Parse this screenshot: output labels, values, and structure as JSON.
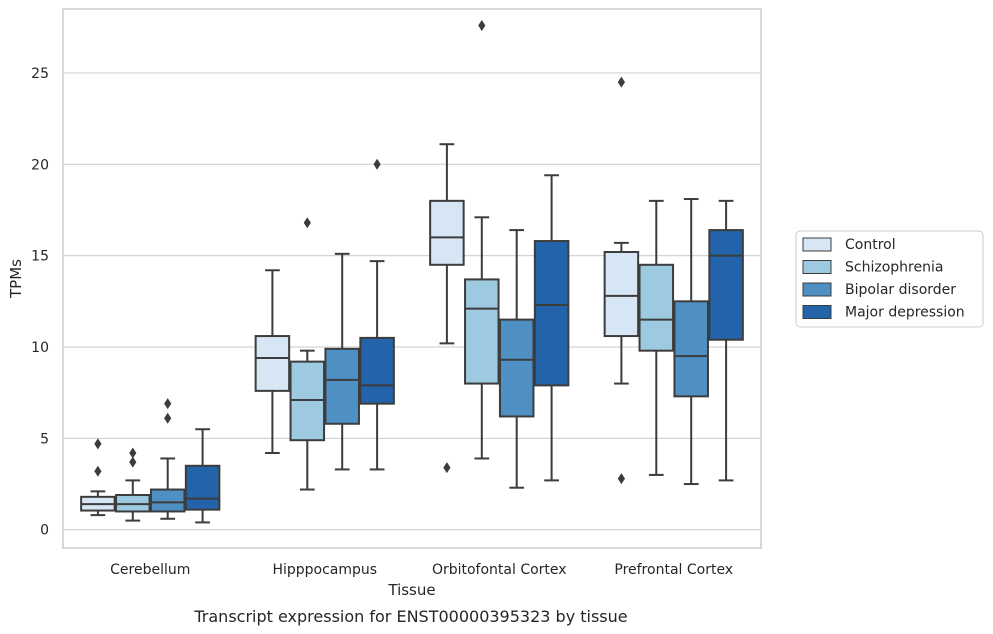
{
  "caption": "Transcript expression for ENST00000395323 by tissue",
  "colors": {
    "control": "#d6e6f4",
    "schizophrenia": "#9ecae1",
    "bipolar": "#4f90c4",
    "depression": "#2363aa",
    "edge": "#3c3c3c",
    "grid": "#d3d3d3",
    "frame": "#cccccc"
  },
  "chart_data": {
    "type": "box",
    "title": "",
    "xlabel": "Tissue",
    "ylabel": "TPMs",
    "ylim": [
      -1,
      28.5
    ],
    "yticks": [
      0,
      5,
      10,
      15,
      20,
      25
    ],
    "grid": "horizontal",
    "legend_position": "outside-right",
    "categories": [
      "Cerebellum",
      "Hipppocampus",
      "Orbitofontal Cortex",
      "Prefrontal Cortex"
    ],
    "series": [
      {
        "name": "Control",
        "boxes": [
          {
            "whislo": 0.8,
            "q1": 1.05,
            "med": 1.4,
            "q3": 1.8,
            "whishi": 2.1,
            "fliers": [
              3.2,
              4.7
            ]
          },
          {
            "whislo": 4.2,
            "q1": 7.6,
            "med": 9.4,
            "q3": 10.6,
            "whishi": 14.2,
            "fliers": []
          },
          {
            "whislo": 10.2,
            "q1": 14.5,
            "med": 16.0,
            "q3": 18.0,
            "whishi": 21.1,
            "fliers": [
              3.4
            ]
          },
          {
            "whislo": 8.0,
            "q1": 10.6,
            "med": 12.8,
            "q3": 15.2,
            "whishi": 15.7,
            "fliers": [
              24.5,
              2.8
            ]
          }
        ]
      },
      {
        "name": "Schizophrenia",
        "boxes": [
          {
            "whislo": 0.5,
            "q1": 1.0,
            "med": 1.4,
            "q3": 1.9,
            "whishi": 2.7,
            "fliers": [
              3.7,
              4.2
            ]
          },
          {
            "whislo": 2.2,
            "q1": 4.9,
            "med": 7.1,
            "q3": 9.2,
            "whishi": 9.8,
            "fliers": [
              16.8
            ]
          },
          {
            "whislo": 3.9,
            "q1": 8.0,
            "med": 12.1,
            "q3": 13.7,
            "whishi": 17.1,
            "fliers": [
              27.6
            ]
          },
          {
            "whislo": 3.0,
            "q1": 9.8,
            "med": 11.5,
            "q3": 14.5,
            "whishi": 18.0,
            "fliers": []
          }
        ]
      },
      {
        "name": "Bipolar disorder",
        "boxes": [
          {
            "whislo": 0.6,
            "q1": 1.0,
            "med": 1.5,
            "q3": 2.2,
            "whishi": 3.9,
            "fliers": [
              6.1,
              6.9
            ]
          },
          {
            "whislo": 3.3,
            "q1": 5.8,
            "med": 8.2,
            "q3": 9.9,
            "whishi": 15.1,
            "fliers": []
          },
          {
            "whislo": 2.3,
            "q1": 6.2,
            "med": 9.3,
            "q3": 11.5,
            "whishi": 16.4,
            "fliers": []
          },
          {
            "whislo": 2.5,
            "q1": 7.3,
            "med": 9.5,
            "q3": 12.5,
            "whishi": 18.1,
            "fliers": []
          }
        ]
      },
      {
        "name": "Major depression",
        "boxes": [
          {
            "whislo": 0.4,
            "q1": 1.1,
            "med": 1.7,
            "q3": 3.5,
            "whishi": 5.5,
            "fliers": []
          },
          {
            "whislo": 3.3,
            "q1": 6.9,
            "med": 7.9,
            "q3": 10.5,
            "whishi": 14.7,
            "fliers": [
              20.0
            ]
          },
          {
            "whislo": 2.7,
            "q1": 7.9,
            "med": 12.3,
            "q3": 15.8,
            "whishi": 19.4,
            "fliers": []
          },
          {
            "whislo": 2.7,
            "q1": 10.4,
            "med": 15.0,
            "q3": 16.4,
            "whishi": 18.0,
            "fliers": []
          }
        ]
      }
    ]
  }
}
